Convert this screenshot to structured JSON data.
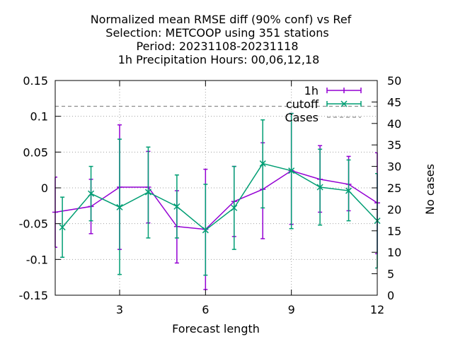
{
  "chart_data": {
    "type": "line",
    "title_lines": [
      "Normalized mean RMSE diff (90% conf) vs Ref",
      "Selection: METCOOP using   351 stations",
      "Period: 20231108-20231118",
      "1h Precipitation   Hours:  00,06,12,18"
    ],
    "xlabel": "Forecast length",
    "ylabel_right": "No cases",
    "xlim": [
      0.75,
      12
    ],
    "ylim": [
      -0.15,
      0.15
    ],
    "y2lim": [
      0,
      50
    ],
    "x_ticks": [
      3,
      6,
      9,
      12
    ],
    "x_tick_labels": [
      "3",
      "6",
      "9",
      "12"
    ],
    "y_ticks": [
      -0.15,
      -0.1,
      -0.05,
      0,
      0.05,
      0.1,
      0.15
    ],
    "y_tick_labels": [
      "-0.15",
      "-0.1",
      "-0.05",
      "0",
      "0.05",
      "0.1",
      "0.15"
    ],
    "y2_ticks": [
      0,
      5,
      10,
      15,
      20,
      25,
      30,
      35,
      40,
      45,
      50
    ],
    "y2_tick_labels": [
      "0",
      "5",
      "10",
      "15",
      "20",
      "25",
      "30",
      "35",
      "40",
      "45",
      "50"
    ],
    "grid": true,
    "legend_position": "top-right",
    "series": [
      {
        "name": "1h",
        "color": "#9400d3",
        "marker": "plus",
        "x": [
          0.75,
          2,
          3,
          4,
          5,
          6,
          7,
          8,
          9,
          10,
          11,
          12
        ],
        "y": [
          -0.034,
          -0.026,
          0.001,
          0.001,
          -0.054,
          -0.058,
          -0.019,
          -0.002,
          0.024,
          0.012,
          0.005,
          -0.021
        ],
        "err_low": [
          -0.083,
          -0.064,
          -0.086,
          -0.049,
          -0.105,
          -0.142,
          -0.068,
          -0.071,
          -0.051,
          -0.034,
          -0.032,
          -0.092
        ],
        "err_high": [
          0.015,
          0.012,
          0.088,
          0.051,
          -0.004,
          0.026,
          0.03,
          0.063,
          0.104,
          0.059,
          0.044,
          0.049
        ]
      },
      {
        "name": "cutoff",
        "color": "#009e73",
        "marker": "cross",
        "x": [
          1,
          2,
          3,
          4,
          5,
          6,
          7,
          8,
          9,
          10,
          11,
          12
        ],
        "y": [
          -0.055,
          -0.008,
          -0.027,
          -0.006,
          -0.026,
          -0.059,
          -0.028,
          0.034,
          0.024,
          0.001,
          -0.004,
          -0.046
        ],
        "err_low": [
          -0.097,
          -0.046,
          -0.121,
          -0.07,
          -0.07,
          -0.122,
          -0.086,
          -0.028,
          -0.057,
          -0.052,
          -0.046,
          -0.112
        ],
        "err_high": [
          -0.013,
          0.03,
          0.068,
          0.057,
          0.018,
          0.005,
          0.03,
          0.095,
          0.104,
          0.054,
          0.039,
          0.02
        ]
      },
      {
        "name": "Cases",
        "color": "#8c8c8c",
        "style": "dashed",
        "axis": "y2",
        "x": [
          0.75,
          12
        ],
        "y": [
          44,
          44
        ]
      }
    ]
  }
}
